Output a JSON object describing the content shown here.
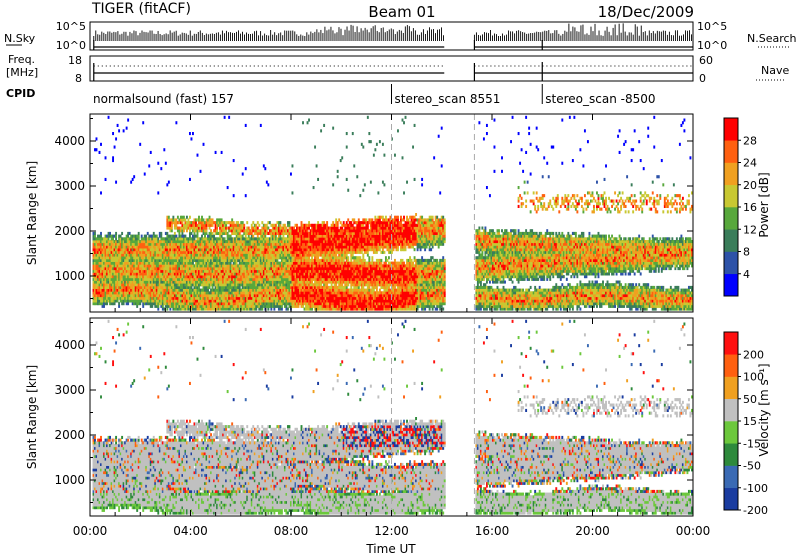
{
  "header": {
    "radar": "TIGER (fitACF)",
    "beam": "Beam 01",
    "date": "18/Dec/2009"
  },
  "top_panels": {
    "nsky_label": "N.Sky",
    "nsky_ticks": [
      "10^5",
      "10^0"
    ],
    "nsearch_label": "N.Search",
    "nsearch_ticks": [
      "10^5",
      "10^0"
    ],
    "freq_label_1": "Freq.",
    "freq_label_2": "[MHz]",
    "freq_ticks": [
      "18",
      "8"
    ],
    "nave_label": "Nave",
    "nave_ticks": [
      "60",
      "0"
    ],
    "cpid_label": "CPID",
    "cpid_segments": [
      {
        "name": "normalsound (fast) 157",
        "start_h": 0.0,
        "end_h": 12.0
      },
      {
        "name": "stereo_scan 8551",
        "start_h": 12.0,
        "end_h": 18.0
      },
      {
        "name": "stereo_scan -8500",
        "start_h": 18.0,
        "end_h": 24.0
      }
    ]
  },
  "chart_data": [
    {
      "type": "heatmap",
      "ylabel": "Slant Range [km]",
      "yticks": [
        "1000",
        "2000",
        "3000",
        "4000"
      ],
      "ylim": [
        200,
        4600
      ],
      "xlim": [
        "00:00",
        "24:00"
      ],
      "colorbar": {
        "label": "Power [dB]",
        "ticks": [
          "4",
          "8",
          "12",
          "16",
          "20",
          "24",
          "28"
        ],
        "range": [
          0,
          32
        ],
        "colors": [
          "#0000ff",
          "#2d52a8",
          "#3a7d5a",
          "#58a83c",
          "#c8c832",
          "#f0a020",
          "#ff6010",
          "#ff0000"
        ]
      },
      "data_gap_ut": [
        14.1,
        15.3
      ],
      "scan_boundaries_ut": [
        12.0,
        15.3
      ]
    },
    {
      "type": "heatmap",
      "ylabel": "Slant Range [km]",
      "yticks": [
        "1000",
        "2000",
        "3000",
        "4000"
      ],
      "ylim": [
        200,
        4600
      ],
      "xlim": [
        "00:00",
        "24:00"
      ],
      "colorbar": {
        "label": "Velocity [m s⁻¹]",
        "ticks": [
          "200",
          "100",
          "50",
          "15",
          "-15",
          "-50",
          "-100",
          "-200"
        ],
        "range": [
          -250,
          250
        ],
        "colors": [
          "#1a3ca0",
          "#3a6ab4",
          "#2e8a3c",
          "#6cc83c",
          "#c0c0c0",
          "#f0a020",
          "#ff6010",
          "#ff1010"
        ]
      },
      "data_gap_ut": [
        14.1,
        15.3
      ],
      "scan_boundaries_ut": [
        12.0,
        15.3
      ]
    }
  ],
  "xaxis": {
    "ticks": [
      "00:00",
      "04:00",
      "08:00",
      "12:00",
      "16:00",
      "20:00",
      "00:00"
    ],
    "label": "Time UT"
  }
}
